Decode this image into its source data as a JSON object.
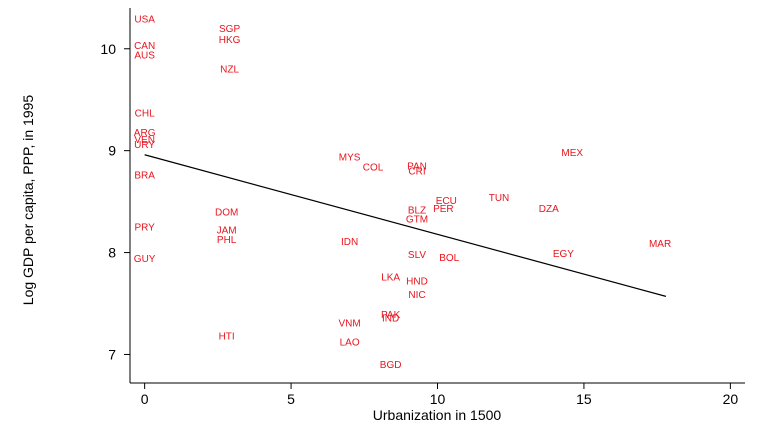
{
  "chart_data": {
    "type": "scatter",
    "title": "",
    "xlabel": "Urbanization in 1500",
    "ylabel": "Log GDP per capita, PPP, in 1995",
    "xlim": [
      -0.5,
      20.5
    ],
    "ylim": [
      6.72,
      10.4
    ],
    "xticks": [
      0,
      5,
      10,
      15,
      20
    ],
    "yticks": [
      7,
      8,
      9,
      10
    ],
    "grid": false,
    "point_color": "#e8141e",
    "line_color": "#000000",
    "points": [
      {
        "label": "USA",
        "x": 0,
        "y": 10.29
      },
      {
        "label": "CAN",
        "x": 0,
        "y": 10.03
      },
      {
        "label": "AUS",
        "x": 0,
        "y": 9.94
      },
      {
        "label": "CHL",
        "x": 0,
        "y": 9.37
      },
      {
        "label": "ARG",
        "x": 0,
        "y": 9.18
      },
      {
        "label": "VEN",
        "x": 0,
        "y": 9.11
      },
      {
        "label": "URY",
        "x": 0,
        "y": 9.06
      },
      {
        "label": "BRA",
        "x": 0,
        "y": 8.76
      },
      {
        "label": "PRY",
        "x": 0,
        "y": 8.25
      },
      {
        "label": "GUY",
        "x": 0,
        "y": 7.94
      },
      {
        "label": "SGP",
        "x": 2.9,
        "y": 10.2
      },
      {
        "label": "HKG",
        "x": 2.9,
        "y": 10.09
      },
      {
        "label": "NZL",
        "x": 2.9,
        "y": 9.8
      },
      {
        "label": "DOM",
        "x": 2.8,
        "y": 8.4
      },
      {
        "label": "JAM",
        "x": 2.8,
        "y": 8.22
      },
      {
        "label": "PHL",
        "x": 2.8,
        "y": 8.13
      },
      {
        "label": "HTI",
        "x": 2.8,
        "y": 7.18
      },
      {
        "label": "MYS",
        "x": 7.0,
        "y": 8.94
      },
      {
        "label": "COL",
        "x": 7.8,
        "y": 8.84
      },
      {
        "label": "PAN",
        "x": 9.3,
        "y": 8.85
      },
      {
        "label": "CRI",
        "x": 9.3,
        "y": 8.8
      },
      {
        "label": "IDN",
        "x": 7.0,
        "y": 8.11
      },
      {
        "label": "VNM",
        "x": 7.0,
        "y": 7.31
      },
      {
        "label": "LAO",
        "x": 7.0,
        "y": 7.12
      },
      {
        "label": "BLZ",
        "x": 9.3,
        "y": 8.42
      },
      {
        "label": "GTM",
        "x": 9.3,
        "y": 8.33
      },
      {
        "label": "ECU",
        "x": 10.3,
        "y": 8.51
      },
      {
        "label": "PER",
        "x": 10.2,
        "y": 8.43
      },
      {
        "label": "TUN",
        "x": 12.1,
        "y": 8.54
      },
      {
        "label": "DZA",
        "x": 13.8,
        "y": 8.43
      },
      {
        "label": "MEX",
        "x": 14.6,
        "y": 8.98
      },
      {
        "label": "SLV",
        "x": 9.3,
        "y": 7.98
      },
      {
        "label": "BOL",
        "x": 10.4,
        "y": 7.95
      },
      {
        "label": "EGY",
        "x": 14.3,
        "y": 7.99
      },
      {
        "label": "MAR",
        "x": 17.6,
        "y": 8.09
      },
      {
        "label": "LKA",
        "x": 8.4,
        "y": 7.76
      },
      {
        "label": "HND",
        "x": 9.3,
        "y": 7.72
      },
      {
        "label": "NIC",
        "x": 9.3,
        "y": 7.59
      },
      {
        "label": "PAK",
        "x": 8.4,
        "y": 7.39
      },
      {
        "label": "IND",
        "x": 8.4,
        "y": 7.36
      },
      {
        "label": "BGD",
        "x": 8.4,
        "y": 6.9
      }
    ],
    "fit_line": {
      "x": [
        0,
        17.8
      ],
      "y": [
        8.96,
        7.57
      ]
    }
  }
}
